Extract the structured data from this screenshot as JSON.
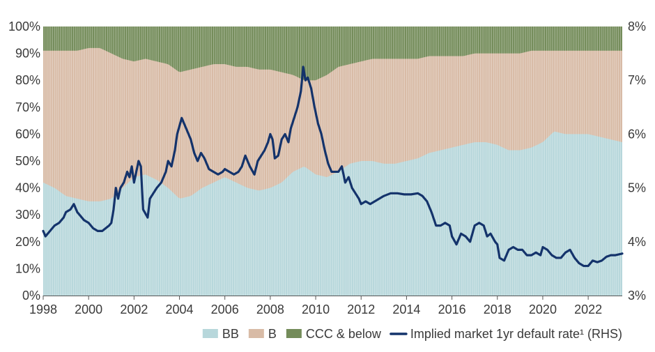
{
  "chart_data": {
    "type": "area",
    "title": "",
    "x_start": 1998,
    "x_end": 2023.5,
    "x_ticks": [
      1998,
      2000,
      2002,
      2004,
      2006,
      2008,
      2010,
      2012,
      2014,
      2016,
      2018,
      2020,
      2022
    ],
    "x_tick_labels": [
      "1998",
      "2000",
      "2002",
      "2004",
      "2006",
      "2008",
      "2010",
      "2012",
      "2014",
      "2016",
      "2018",
      "2020",
      "2022"
    ],
    "left_axis": {
      "ylim": [
        0,
        100
      ],
      "ticks": [
        0,
        10,
        20,
        30,
        40,
        50,
        60,
        70,
        80,
        90,
        100
      ],
      "tick_labels": [
        "0%",
        "10%",
        "20%",
        "30%",
        "40%",
        "50%",
        "60%",
        "70%",
        "80%",
        "90%",
        "100%"
      ]
    },
    "right_axis": {
      "ylim": [
        3,
        8
      ],
      "ticks": [
        3,
        4,
        5,
        6,
        7,
        8
      ],
      "tick_labels": [
        "3%",
        "4%",
        "5%",
        "6%",
        "7%",
        "8%"
      ]
    },
    "stacked_series": [
      {
        "name": "BB",
        "color": "#b7d7db",
        "points": [
          [
            1998,
            42
          ],
          [
            1998.5,
            40
          ],
          [
            1999,
            37
          ],
          [
            1999.5,
            36
          ],
          [
            2000,
            35
          ],
          [
            2000.5,
            35
          ],
          [
            2001,
            36
          ],
          [
            2001.5,
            40
          ],
          [
            2002,
            44
          ],
          [
            2002.5,
            45
          ],
          [
            2003,
            43
          ],
          [
            2003.5,
            40
          ],
          [
            2004,
            36
          ],
          [
            2004.5,
            37
          ],
          [
            2005,
            40
          ],
          [
            2005.5,
            42
          ],
          [
            2006,
            44
          ],
          [
            2006.5,
            42
          ],
          [
            2007,
            40
          ],
          [
            2007.5,
            39
          ],
          [
            2008,
            40
          ],
          [
            2008.5,
            42
          ],
          [
            2009,
            46
          ],
          [
            2009.5,
            48
          ],
          [
            2010,
            45
          ],
          [
            2010.5,
            44
          ],
          [
            2011,
            46
          ],
          [
            2011.5,
            49
          ],
          [
            2012,
            50
          ],
          [
            2012.5,
            50
          ],
          [
            2013,
            49
          ],
          [
            2013.5,
            49
          ],
          [
            2014,
            50
          ],
          [
            2014.5,
            51
          ],
          [
            2015,
            53
          ],
          [
            2015.5,
            54
          ],
          [
            2016,
            55
          ],
          [
            2016.5,
            56
          ],
          [
            2017,
            57
          ],
          [
            2017.5,
            57
          ],
          [
            2018,
            56
          ],
          [
            2018.5,
            54
          ],
          [
            2019,
            54
          ],
          [
            2019.5,
            55
          ],
          [
            2020,
            57
          ],
          [
            2020.5,
            61
          ],
          [
            2021,
            60
          ],
          [
            2021.5,
            60
          ],
          [
            2022,
            60
          ],
          [
            2022.5,
            59
          ],
          [
            2023,
            58
          ],
          [
            2023.5,
            57
          ]
        ]
      },
      {
        "name": "B",
        "color": "#d8bba6",
        "points": [
          [
            1998,
            91
          ],
          [
            1998.5,
            91
          ],
          [
            1999,
            91
          ],
          [
            1999.5,
            91
          ],
          [
            2000,
            92
          ],
          [
            2000.5,
            92
          ],
          [
            2001,
            90
          ],
          [
            2001.5,
            88
          ],
          [
            2002,
            87
          ],
          [
            2002.5,
            88
          ],
          [
            2003,
            87
          ],
          [
            2003.5,
            86
          ],
          [
            2004,
            83
          ],
          [
            2004.5,
            84
          ],
          [
            2005,
            85
          ],
          [
            2005.5,
            86
          ],
          [
            2006,
            86
          ],
          [
            2006.5,
            85
          ],
          [
            2007,
            85
          ],
          [
            2007.5,
            84
          ],
          [
            2008,
            84
          ],
          [
            2008.5,
            83
          ],
          [
            2009,
            82
          ],
          [
            2009.5,
            80
          ],
          [
            2010,
            80
          ],
          [
            2010.5,
            82
          ],
          [
            2011,
            85
          ],
          [
            2011.5,
            86
          ],
          [
            2012,
            87
          ],
          [
            2012.5,
            88
          ],
          [
            2013,
            88
          ],
          [
            2013.5,
            88
          ],
          [
            2014,
            88
          ],
          [
            2014.5,
            88
          ],
          [
            2015,
            89
          ],
          [
            2015.5,
            89
          ],
          [
            2016,
            89
          ],
          [
            2016.5,
            89
          ],
          [
            2017,
            90
          ],
          [
            2017.5,
            90
          ],
          [
            2018,
            90
          ],
          [
            2018.5,
            90
          ],
          [
            2019,
            90
          ],
          [
            2019.5,
            91
          ],
          [
            2020,
            91
          ],
          [
            2020.5,
            91
          ],
          [
            2021,
            91
          ],
          [
            2021.5,
            91
          ],
          [
            2022,
            91
          ],
          [
            2022.5,
            91
          ],
          [
            2023,
            91
          ],
          [
            2023.5,
            91
          ]
        ]
      },
      {
        "name": "CCC & below",
        "color": "#748c5a",
        "points": [
          [
            1998,
            100
          ],
          [
            2023.5,
            100
          ]
        ]
      }
    ],
    "line_series": {
      "name": "Implied market 1yr default rate¹ (RHS)",
      "color": "#14336b",
      "axis": "right",
      "points": [
        [
          1998,
          4.2
        ],
        [
          1998.1,
          4.1
        ],
        [
          1998.3,
          4.2
        ],
        [
          1998.5,
          4.3
        ],
        [
          1998.7,
          4.35
        ],
        [
          1998.9,
          4.45
        ],
        [
          1999,
          4.55
        ],
        [
          1999.2,
          4.6
        ],
        [
          1999.35,
          4.7
        ],
        [
          1999.5,
          4.55
        ],
        [
          1999.6,
          4.5
        ],
        [
          1999.8,
          4.4
        ],
        [
          2000,
          4.35
        ],
        [
          2000.2,
          4.25
        ],
        [
          2000.4,
          4.2
        ],
        [
          2000.6,
          4.2
        ],
        [
          2000.75,
          4.25
        ],
        [
          2000.9,
          4.3
        ],
        [
          2001,
          4.35
        ],
        [
          2001.1,
          4.6
        ],
        [
          2001.2,
          5.0
        ],
        [
          2001.3,
          4.8
        ],
        [
          2001.4,
          5.0
        ],
        [
          2001.55,
          5.1
        ],
        [
          2001.7,
          5.3
        ],
        [
          2001.8,
          5.2
        ],
        [
          2001.9,
          5.4
        ],
        [
          2002.0,
          5.1
        ],
        [
          2002.1,
          5.3
        ],
        [
          2002.2,
          5.5
        ],
        [
          2002.3,
          5.4
        ],
        [
          2002.4,
          4.6
        ],
        [
          2002.6,
          4.45
        ],
        [
          2002.7,
          4.8
        ],
        [
          2002.85,
          4.9
        ],
        [
          2003,
          5.0
        ],
        [
          2003.2,
          5.1
        ],
        [
          2003.4,
          5.3
        ],
        [
          2003.5,
          5.5
        ],
        [
          2003.65,
          5.4
        ],
        [
          2003.8,
          5.7
        ],
        [
          2003.9,
          6.0
        ],
        [
          2004.1,
          6.3
        ],
        [
          2004.3,
          6.1
        ],
        [
          2004.5,
          5.9
        ],
        [
          2004.65,
          5.65
        ],
        [
          2004.8,
          5.5
        ],
        [
          2004.95,
          5.65
        ],
        [
          2005.1,
          5.55
        ],
        [
          2005.3,
          5.35
        ],
        [
          2005.5,
          5.3
        ],
        [
          2005.7,
          5.25
        ],
        [
          2005.9,
          5.3
        ],
        [
          2006,
          5.35
        ],
        [
          2006.2,
          5.3
        ],
        [
          2006.4,
          5.25
        ],
        [
          2006.6,
          5.3
        ],
        [
          2006.75,
          5.4
        ],
        [
          2006.9,
          5.6
        ],
        [
          2007.1,
          5.4
        ],
        [
          2007.3,
          5.25
        ],
        [
          2007.45,
          5.5
        ],
        [
          2007.6,
          5.6
        ],
        [
          2007.75,
          5.7
        ],
        [
          2007.9,
          5.85
        ],
        [
          2008,
          6.0
        ],
        [
          2008.1,
          5.9
        ],
        [
          2008.2,
          5.55
        ],
        [
          2008.35,
          5.6
        ],
        [
          2008.5,
          5.9
        ],
        [
          2008.65,
          6.0
        ],
        [
          2008.8,
          5.85
        ],
        [
          2008.9,
          6.1
        ],
        [
          2009.05,
          6.3
        ],
        [
          2009.2,
          6.5
        ],
        [
          2009.35,
          6.8
        ],
        [
          2009.45,
          7.25
        ],
        [
          2009.55,
          7.0
        ],
        [
          2009.65,
          7.05
        ],
        [
          2009.8,
          6.85
        ],
        [
          2009.95,
          6.5
        ],
        [
          2010.1,
          6.2
        ],
        [
          2010.25,
          6.0
        ],
        [
          2010.4,
          5.7
        ],
        [
          2010.55,
          5.45
        ],
        [
          2010.7,
          5.3
        ],
        [
          2010.85,
          5.3
        ],
        [
          2011,
          5.3
        ],
        [
          2011.15,
          5.4
        ],
        [
          2011.3,
          5.1
        ],
        [
          2011.45,
          5.2
        ],
        [
          2011.6,
          5.0
        ],
        [
          2011.75,
          4.9
        ],
        [
          2011.9,
          4.8
        ],
        [
          2012,
          4.7
        ],
        [
          2012.2,
          4.75
        ],
        [
          2012.4,
          4.7
        ],
        [
          2012.6,
          4.75
        ],
        [
          2012.8,
          4.8
        ],
        [
          2013,
          4.85
        ],
        [
          2013.3,
          4.9
        ],
        [
          2013.6,
          4.9
        ],
        [
          2013.9,
          4.88
        ],
        [
          2014.2,
          4.88
        ],
        [
          2014.5,
          4.9
        ],
        [
          2014.7,
          4.85
        ],
        [
          2014.9,
          4.75
        ],
        [
          2015.1,
          4.55
        ],
        [
          2015.3,
          4.3
        ],
        [
          2015.5,
          4.3
        ],
        [
          2015.7,
          4.35
        ],
        [
          2015.9,
          4.3
        ],
        [
          2016.0,
          4.1
        ],
        [
          2016.2,
          3.95
        ],
        [
          2016.4,
          4.15
        ],
        [
          2016.6,
          4.1
        ],
        [
          2016.8,
          4.0
        ],
        [
          2017.0,
          4.3
        ],
        [
          2017.2,
          4.35
        ],
        [
          2017.4,
          4.3
        ],
        [
          2017.55,
          4.1
        ],
        [
          2017.7,
          4.15
        ],
        [
          2017.9,
          4.0
        ],
        [
          2018.0,
          3.95
        ],
        [
          2018.1,
          3.7
        ],
        [
          2018.3,
          3.65
        ],
        [
          2018.5,
          3.85
        ],
        [
          2018.7,
          3.9
        ],
        [
          2018.9,
          3.85
        ],
        [
          2019.1,
          3.85
        ],
        [
          2019.3,
          3.75
        ],
        [
          2019.5,
          3.75
        ],
        [
          2019.7,
          3.8
        ],
        [
          2019.9,
          3.75
        ],
        [
          2020.0,
          3.9
        ],
        [
          2020.2,
          3.85
        ],
        [
          2020.4,
          3.75
        ],
        [
          2020.6,
          3.7
        ],
        [
          2020.8,
          3.7
        ],
        [
          2021.0,
          3.8
        ],
        [
          2021.2,
          3.85
        ],
        [
          2021.4,
          3.7
        ],
        [
          2021.6,
          3.6
        ],
        [
          2021.8,
          3.55
        ],
        [
          2022.0,
          3.55
        ],
        [
          2022.2,
          3.65
        ],
        [
          2022.4,
          3.62
        ],
        [
          2022.6,
          3.65
        ],
        [
          2022.8,
          3.72
        ],
        [
          2023.0,
          3.75
        ],
        [
          2023.2,
          3.75
        ],
        [
          2023.5,
          3.78
        ]
      ]
    },
    "legend": {
      "placement": "bottom",
      "items": [
        {
          "label": "BB",
          "kind": "swatch",
          "color": "#b7d7db"
        },
        {
          "label": "B",
          "kind": "swatch",
          "color": "#d8bba6"
        },
        {
          "label": "CCC & below",
          "kind": "swatch",
          "color": "#748c5a"
        },
        {
          "label": "Implied market 1yr default rate¹ (RHS)",
          "kind": "line",
          "color": "#14336b"
        }
      ]
    },
    "grid": false
  }
}
